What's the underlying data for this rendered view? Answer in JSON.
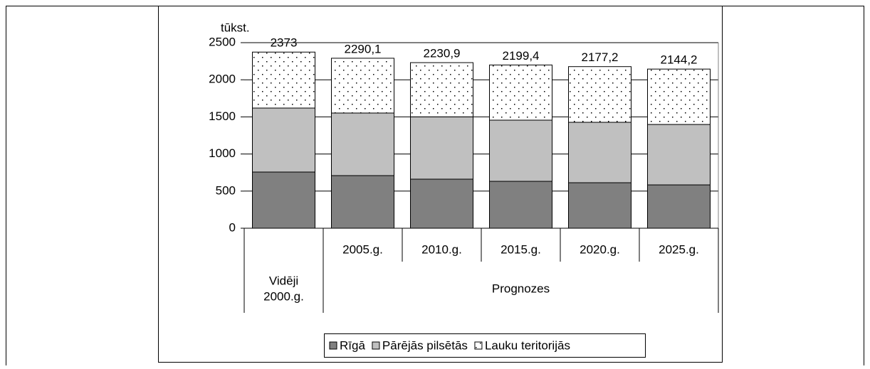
{
  "chart_data": {
    "type": "stacked_bar",
    "ylabel": "tūkst.",
    "categories": [
      null,
      "2005.g.",
      "2010.g.",
      "2015.g.",
      "2020.g.",
      "2025.g."
    ],
    "groups": [
      {
        "label": [
          "Vidēji",
          "2000.g."
        ],
        "span": 1
      },
      {
        "label": [
          "Prognozes"
        ],
        "span": 5
      }
    ],
    "series": [
      {
        "name": "Rīgā",
        "color": "#808080",
        "values": [
          757,
          709,
          661,
          632,
          613,
          584
        ]
      },
      {
        "name": "Pārējās pilsētās",
        "color": "#c0c0c0",
        "values": [
          862,
          843,
          840,
          824,
          814,
          814
        ]
      },
      {
        "name": "Lauku teritorijās",
        "color": "#ffffff",
        "pattern": "dots",
        "values": [
          754,
          738.1,
          729.9,
          743.4,
          750.2,
          746.2
        ]
      }
    ],
    "totals": {
      "values": [
        2373,
        2290.1,
        2230.9,
        2199.4,
        2177.2,
        2144.2
      ],
      "value_labels": [
        "2373",
        "2290,1",
        "2230,9",
        "2199,4",
        "2177,2",
        "2144,2"
      ]
    },
    "ylim": [
      0,
      2500
    ],
    "yticks": [
      0,
      500,
      1000,
      1500,
      2000,
      2500
    ],
    "grid": true,
    "legend": "bottom"
  }
}
